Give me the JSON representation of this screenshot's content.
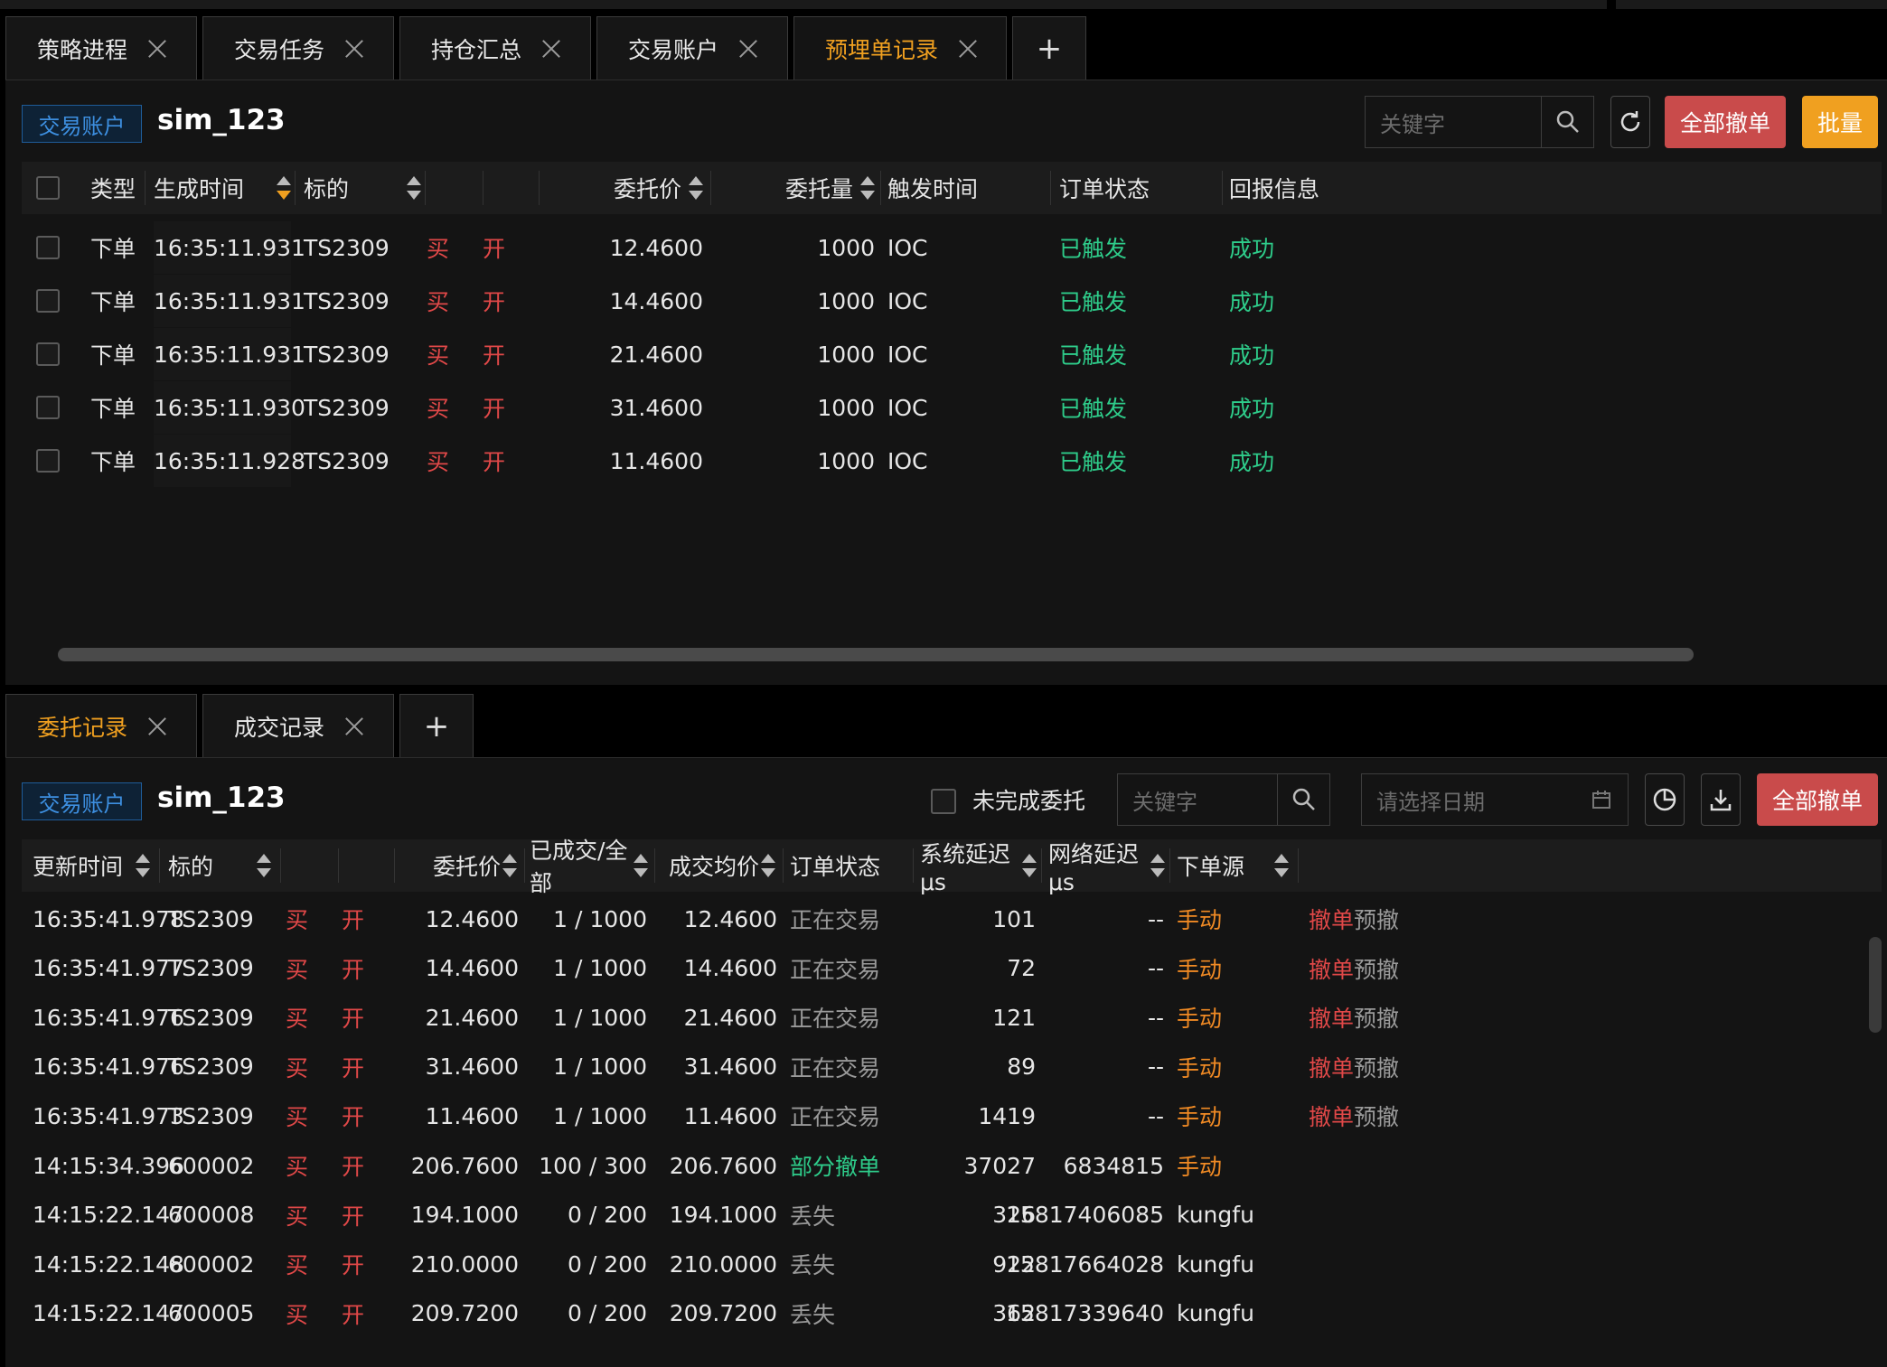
{
  "top_tabs": [
    {
      "label": "策略进程",
      "active": false
    },
    {
      "label": "交易任务",
      "active": false
    },
    {
      "label": "持仓汇总",
      "active": false
    },
    {
      "label": "交易账户",
      "active": false
    },
    {
      "label": "预埋单记录",
      "active": true
    }
  ],
  "top_panel": {
    "account_badge": "交易账户",
    "account_name": "sim_123",
    "search_placeholder": "关键字",
    "cancel_all_label": "全部撤单",
    "batch_label": "批量",
    "columns": [
      "类型",
      "生成时间",
      "标的",
      "委托价",
      "委托量",
      "触发时间",
      "订单状态",
      "回报信息"
    ],
    "rows": [
      {
        "type": "下单",
        "time": "16:35:11.931",
        "symbol": "TS2309",
        "side": "买",
        "offset": "开",
        "price": "12.4600",
        "qty": "1000",
        "trigger": "IOC",
        "status": "已触发",
        "report": "成功"
      },
      {
        "type": "下单",
        "time": "16:35:11.931",
        "symbol": "TS2309",
        "side": "买",
        "offset": "开",
        "price": "14.4600",
        "qty": "1000",
        "trigger": "IOC",
        "status": "已触发",
        "report": "成功"
      },
      {
        "type": "下单",
        "time": "16:35:11.931",
        "symbol": "TS2309",
        "side": "买",
        "offset": "开",
        "price": "21.4600",
        "qty": "1000",
        "trigger": "IOC",
        "status": "已触发",
        "report": "成功"
      },
      {
        "type": "下单",
        "time": "16:35:11.930",
        "symbol": "TS2309",
        "side": "买",
        "offset": "开",
        "price": "31.4600",
        "qty": "1000",
        "trigger": "IOC",
        "status": "已触发",
        "report": "成功"
      },
      {
        "type": "下单",
        "time": "16:35:11.928",
        "symbol": "TS2309",
        "side": "买",
        "offset": "开",
        "price": "11.4600",
        "qty": "1000",
        "trigger": "IOC",
        "status": "已触发",
        "report": "成功"
      }
    ]
  },
  "bottom_tabs": [
    {
      "label": "委托记录",
      "active": true
    },
    {
      "label": "成交记录",
      "active": false
    }
  ],
  "bottom_panel": {
    "account_badge": "交易账户",
    "account_name": "sim_123",
    "unfinished_label": "未完成委托",
    "search_placeholder": "关键字",
    "date_placeholder": "请选择日期",
    "cancel_all_label": "全部撤单",
    "columns": [
      "更新时间",
      "标的",
      "委托价",
      "已成交/全部",
      "成交均价",
      "订单状态",
      "系统延迟 μs",
      "网络延迟 μs",
      "下单源"
    ],
    "rows": [
      {
        "time": "16:35:41.978",
        "symbol": "TS2309",
        "side": "买",
        "offset": "开",
        "price": "12.4600",
        "filled": "1 / 1000",
        "avg": "12.4600",
        "status": "正在交易",
        "status_kind": "grey",
        "sys": "101",
        "net": "--",
        "source": "手动",
        "source_kind": "orange",
        "cancel": "撤单",
        "pre": "预撤"
      },
      {
        "time": "16:35:41.977",
        "symbol": "TS2309",
        "side": "买",
        "offset": "开",
        "price": "14.4600",
        "filled": "1 / 1000",
        "avg": "14.4600",
        "status": "正在交易",
        "status_kind": "grey",
        "sys": "72",
        "net": "--",
        "source": "手动",
        "source_kind": "orange",
        "cancel": "撤单",
        "pre": "预撤"
      },
      {
        "time": "16:35:41.976",
        "symbol": "TS2309",
        "side": "买",
        "offset": "开",
        "price": "21.4600",
        "filled": "1 / 1000",
        "avg": "21.4600",
        "status": "正在交易",
        "status_kind": "grey",
        "sys": "121",
        "net": "--",
        "source": "手动",
        "source_kind": "orange",
        "cancel": "撤单",
        "pre": "预撤"
      },
      {
        "time": "16:35:41.976",
        "symbol": "TS2309",
        "side": "买",
        "offset": "开",
        "price": "31.4600",
        "filled": "1 / 1000",
        "avg": "31.4600",
        "status": "正在交易",
        "status_kind": "grey",
        "sys": "89",
        "net": "--",
        "source": "手动",
        "source_kind": "orange",
        "cancel": "撤单",
        "pre": "预撤"
      },
      {
        "time": "16:35:41.973",
        "symbol": "TS2309",
        "side": "买",
        "offset": "开",
        "price": "11.4600",
        "filled": "1 / 1000",
        "avg": "11.4600",
        "status": "正在交易",
        "status_kind": "grey",
        "sys": "1419",
        "net": "--",
        "source": "手动",
        "source_kind": "orange",
        "cancel": "撤单",
        "pre": "预撤"
      },
      {
        "time": "14:15:34.396",
        "symbol": "600002",
        "side": "买",
        "offset": "开",
        "price": "206.7600",
        "filled": "100 / 300",
        "avg": "206.7600",
        "status": "部分撤单",
        "status_kind": "green",
        "sys": "37027",
        "net": "6834815",
        "source": "手动",
        "source_kind": "orange",
        "cancel": "",
        "pre": ""
      },
      {
        "time": "14:15:22.147",
        "symbol": "600008",
        "side": "买",
        "offset": "开",
        "price": "194.1000",
        "filled": "0 / 200",
        "avg": "194.1000",
        "status": "丢失",
        "status_kind": "grey",
        "sys": "326",
        "net": "15817406085",
        "source": "kungfu",
        "source_kind": "white",
        "cancel": "",
        "pre": ""
      },
      {
        "time": "14:15:22.148",
        "symbol": "600002",
        "side": "买",
        "offset": "开",
        "price": "210.0000",
        "filled": "0 / 200",
        "avg": "210.0000",
        "status": "丢失",
        "status_kind": "grey",
        "sys": "922",
        "net": "15817664028",
        "source": "kungfu",
        "source_kind": "white",
        "cancel": "",
        "pre": ""
      },
      {
        "time": "14:15:22.147",
        "symbol": "600005",
        "side": "买",
        "offset": "开",
        "price": "209.7200",
        "filled": "0 / 200",
        "avg": "209.7200",
        "status": "丢失",
        "status_kind": "grey",
        "sys": "362",
        "net": "15817339640",
        "source": "kungfu",
        "source_kind": "white",
        "cancel": "",
        "pre": ""
      }
    ]
  },
  "colors": {
    "accent": "#f0a020",
    "buy": "#e04848",
    "success": "#2ecc8a",
    "danger_button": "#c94b4b",
    "source_manual": "#f08a24"
  }
}
